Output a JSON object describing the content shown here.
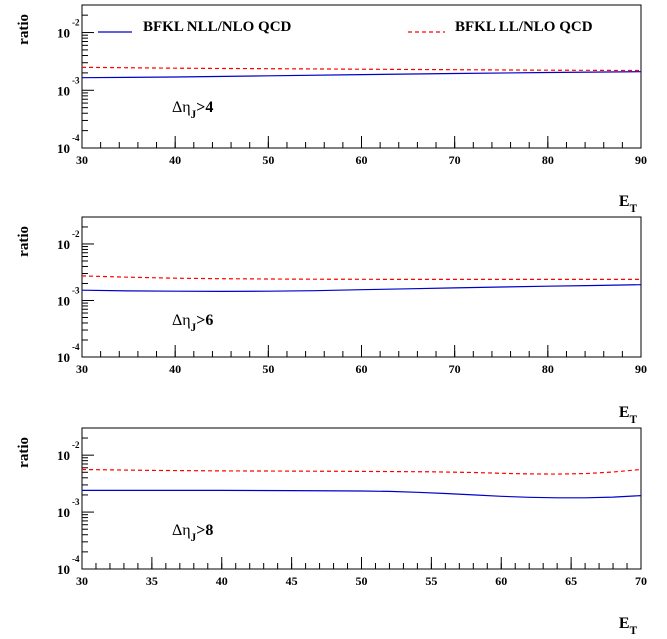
{
  "chart_data": [
    {
      "type": "line",
      "title": "",
      "ylabel": "ratio",
      "xlabel": "E",
      "xlabel_sub": "T",
      "annotation": {
        "prefix": "Δη",
        "sub": "J",
        "suffix": ">4"
      },
      "xlim": [
        30,
        90
      ],
      "ylim": [
        0.0001,
        0.03
      ],
      "yscale": "log",
      "x_major_ticks": [
        30,
        40,
        50,
        60,
        70,
        80,
        90
      ],
      "x_minor_step": 2,
      "y_major_ticks": [
        {
          "value": 0.0001,
          "base": "10",
          "exp": "-4"
        },
        {
          "value": 0.001,
          "base": "10",
          "exp": "-3"
        },
        {
          "value": 0.01,
          "base": "10",
          "exp": "-2"
        }
      ],
      "legend": {
        "position": "top",
        "entries": [
          {
            "label": "BFKL NLL/NLO QCD",
            "series": 0
          },
          {
            "label": "BFKL LL/NLO QCD",
            "series": 1
          }
        ]
      },
      "series": [
        {
          "name": "BFKL NLL/NLO QCD",
          "color": "#0000cc",
          "dash": "solid",
          "x": [
            30,
            40,
            50,
            60,
            70,
            80,
            90
          ],
          "y": [
            0.00165,
            0.0017,
            0.00178,
            0.00187,
            0.00195,
            0.00203,
            0.0021
          ]
        },
        {
          "name": "BFKL LL/NLO QCD",
          "color": "#ff0000",
          "dash": "dashed",
          "x": [
            30,
            40,
            50,
            60,
            70,
            80,
            90
          ],
          "y": [
            0.0025,
            0.00241,
            0.00236,
            0.00232,
            0.00227,
            0.00223,
            0.0022
          ]
        }
      ]
    },
    {
      "type": "line",
      "title": "",
      "ylabel": "ratio",
      "xlabel": "E",
      "xlabel_sub": "T",
      "annotation": {
        "prefix": "Δη",
        "sub": "J",
        "suffix": ">6"
      },
      "xlim": [
        30,
        90
      ],
      "ylim": [
        0.0001,
        0.03
      ],
      "yscale": "log",
      "x_major_ticks": [
        30,
        40,
        50,
        60,
        70,
        80,
        90
      ],
      "x_minor_step": 2,
      "y_major_ticks": [
        {
          "value": 0.0001,
          "base": "10",
          "exp": "-4"
        },
        {
          "value": 0.001,
          "base": "10",
          "exp": "-3"
        },
        {
          "value": 0.01,
          "base": "10",
          "exp": "-2"
        }
      ],
      "series": [
        {
          "name": "BFKL NLL/NLO QCD",
          "color": "#0000cc",
          "dash": "solid",
          "x": [
            30,
            35,
            40,
            45,
            50,
            55,
            60,
            65,
            70,
            75,
            80,
            85,
            90
          ],
          "y": [
            0.00152,
            0.00148,
            0.00146,
            0.00145,
            0.00146,
            0.00149,
            0.00155,
            0.00161,
            0.00167,
            0.00173,
            0.00179,
            0.00184,
            0.0019
          ]
        },
        {
          "name": "BFKL LL/NLO QCD",
          "color": "#ff0000",
          "dash": "dashed",
          "x": [
            30,
            35,
            40,
            45,
            50,
            55,
            60,
            65,
            70,
            75,
            80,
            85,
            90
          ],
          "y": [
            0.00272,
            0.00258,
            0.00248,
            0.00243,
            0.0024,
            0.00238,
            0.00237,
            0.00236,
            0.00236,
            0.00236,
            0.00236,
            0.00236,
            0.00236
          ]
        }
      ]
    },
    {
      "type": "line",
      "title": "",
      "ylabel": "ratio",
      "xlabel": "E",
      "xlabel_sub": "T",
      "annotation": {
        "prefix": "Δη",
        "sub": "J",
        "suffix": ">8"
      },
      "xlim": [
        30,
        70
      ],
      "ylim": [
        0.0001,
        0.03
      ],
      "yscale": "log",
      "x_major_ticks": [
        30,
        35,
        40,
        45,
        50,
        55,
        60,
        65,
        70
      ],
      "x_minor_step": 1,
      "y_major_ticks": [
        {
          "value": 0.0001,
          "base": "10",
          "exp": "-4"
        },
        {
          "value": 0.001,
          "base": "10",
          "exp": "-3"
        },
        {
          "value": 0.01,
          "base": "10",
          "exp": "-2"
        }
      ],
      "series": [
        {
          "name": "BFKL NLL/NLO QCD",
          "color": "#0000cc",
          "dash": "solid",
          "x": [
            30,
            35,
            40,
            45,
            50,
            52,
            54,
            56,
            58,
            60,
            62,
            64,
            66,
            68,
            70
          ],
          "y": [
            0.0024,
            0.0024,
            0.0024,
            0.00238,
            0.00235,
            0.00231,
            0.00223,
            0.00212,
            0.002,
            0.00189,
            0.00182,
            0.00178,
            0.00178,
            0.00183,
            0.00195
          ]
        },
        {
          "name": "BFKL LL/NLO QCD",
          "color": "#ff0000",
          "dash": "dashed",
          "x": [
            30,
            35,
            40,
            45,
            50,
            55,
            58,
            60,
            62,
            64,
            66,
            68,
            70
          ],
          "y": [
            0.0056,
            0.0054,
            0.0053,
            0.00525,
            0.00518,
            0.0051,
            0.00495,
            0.0048,
            0.00468,
            0.00464,
            0.00475,
            0.00505,
            0.0056
          ]
        }
      ]
    }
  ]
}
